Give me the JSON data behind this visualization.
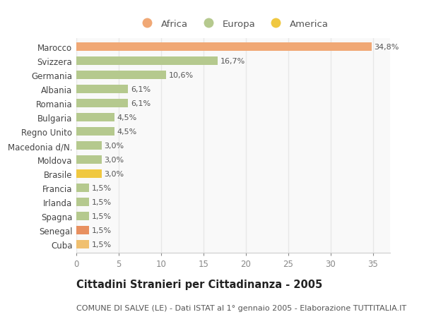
{
  "categories": [
    "Cuba",
    "Senegal",
    "Spagna",
    "Irlanda",
    "Francia",
    "Brasile",
    "Moldova",
    "Macedonia d/N.",
    "Regno Unito",
    "Bulgaria",
    "Romania",
    "Albania",
    "Germania",
    "Svizzera",
    "Marocco"
  ],
  "values": [
    1.5,
    1.5,
    1.5,
    1.5,
    1.5,
    3.0,
    3.0,
    3.0,
    4.5,
    4.5,
    6.1,
    6.1,
    10.6,
    16.7,
    34.8
  ],
  "labels": [
    "1,5%",
    "1,5%",
    "1,5%",
    "1,5%",
    "1,5%",
    "3,0%",
    "3,0%",
    "3,0%",
    "4,5%",
    "4,5%",
    "6,1%",
    "6,1%",
    "10,6%",
    "16,7%",
    "34,8%"
  ],
  "colors": [
    "#f0c070",
    "#e89060",
    "#b5c98e",
    "#b5c98e",
    "#b5c98e",
    "#f0c840",
    "#b5c98e",
    "#b5c98e",
    "#b5c98e",
    "#b5c98e",
    "#b5c98e",
    "#b5c98e",
    "#b5c98e",
    "#b5c98e",
    "#f0a875"
  ],
  "legend": [
    {
      "label": "Africa",
      "color": "#f0a875"
    },
    {
      "label": "Europa",
      "color": "#b5c98e"
    },
    {
      "label": "America",
      "color": "#f0c840"
    }
  ],
  "title": "Cittadini Stranieri per Cittadinanza - 2005",
  "subtitle": "COMUNE DI SALVE (LE) - Dati ISTAT al 1° gennaio 2005 - Elaborazione TUTTITALIA.IT",
  "xlim": [
    0,
    37
  ],
  "xticks": [
    0,
    5,
    10,
    15,
    20,
    25,
    30,
    35
  ],
  "background_color": "#ffffff",
  "plot_bg_color": "#f9f9f9",
  "grid_color": "#e8e8e8",
  "bar_height": 0.6,
  "title_fontsize": 10.5,
  "subtitle_fontsize": 8,
  "label_fontsize": 8,
  "tick_fontsize": 8.5
}
